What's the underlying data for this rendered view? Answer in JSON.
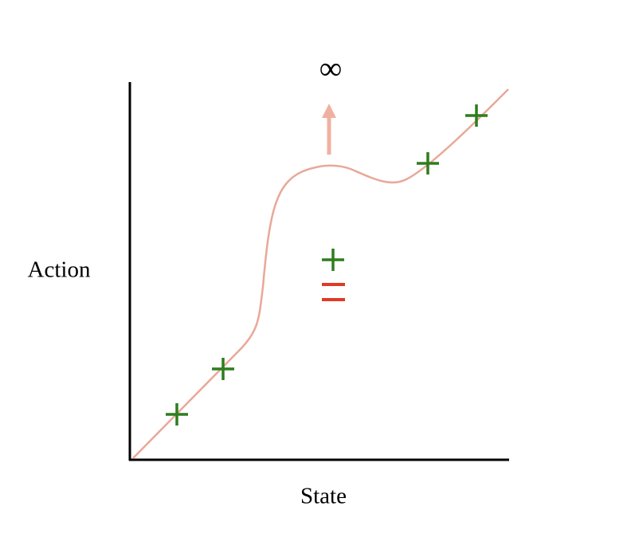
{
  "axes": {
    "y_label": "Action",
    "x_label": "State"
  },
  "annotation": "∞"
}
